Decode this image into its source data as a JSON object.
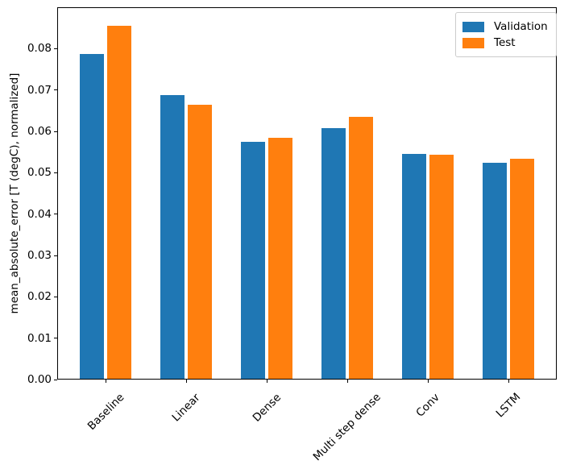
{
  "chart_data": {
    "type": "bar",
    "ylabel": "mean_absolute_error [T (degC), normalized]",
    "categories": [
      "Baseline",
      "Linear",
      "Dense",
      "Multi step dense",
      "Conv",
      "LSTM"
    ],
    "series": [
      {
        "name": "Validation",
        "color": "#1f77b4",
        "values": [
          0.0787,
          0.0688,
          0.0574,
          0.0608,
          0.0545,
          0.0524
        ]
      },
      {
        "name": "Test",
        "color": "#ff7f0e",
        "values": [
          0.0855,
          0.0664,
          0.0584,
          0.0635,
          0.0543,
          0.0534
        ]
      }
    ],
    "ylim": [
      0,
      0.09
    ],
    "xlim": [
      -0.6,
      5.6
    ],
    "yticks": [
      "0.00",
      "0.01",
      "0.02",
      "0.03",
      "0.04",
      "0.05",
      "0.06",
      "0.07",
      "0.08"
    ],
    "bar_width": 0.3,
    "bar_offsets": [
      -0.17,
      0.17
    ],
    "x_tick_rotation": 45,
    "grid": false,
    "legend": {
      "position": "upper right"
    },
    "axis_color": "#000000",
    "background": "#ffffff"
  }
}
